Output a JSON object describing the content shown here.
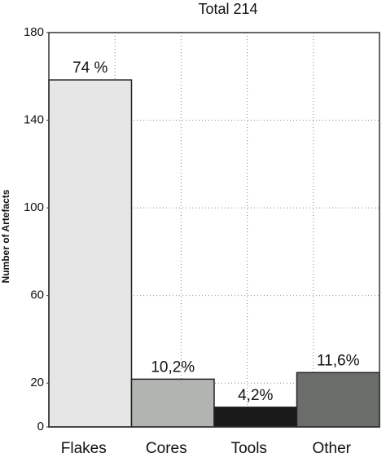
{
  "chart_data": {
    "type": "bar",
    "title": "Total  214",
    "y_label": "Number of Artefacts",
    "categories": [
      "Flakes",
      "Cores",
      "Tools",
      "Other"
    ],
    "values": [
      158.4,
      21.8,
      9,
      24.8
    ],
    "value_labels": [
      "74 %",
      "10,2%",
      "4,2%",
      "11,6%"
    ],
    "colors": [
      "#e6e6e6",
      "#b2b4b2",
      "#1a1a1a",
      "#6b6d6b"
    ],
    "ylim": [
      0,
      180
    ],
    "yticks": [
      0,
      20,
      60,
      100,
      140,
      180
    ],
    "grid": true
  }
}
